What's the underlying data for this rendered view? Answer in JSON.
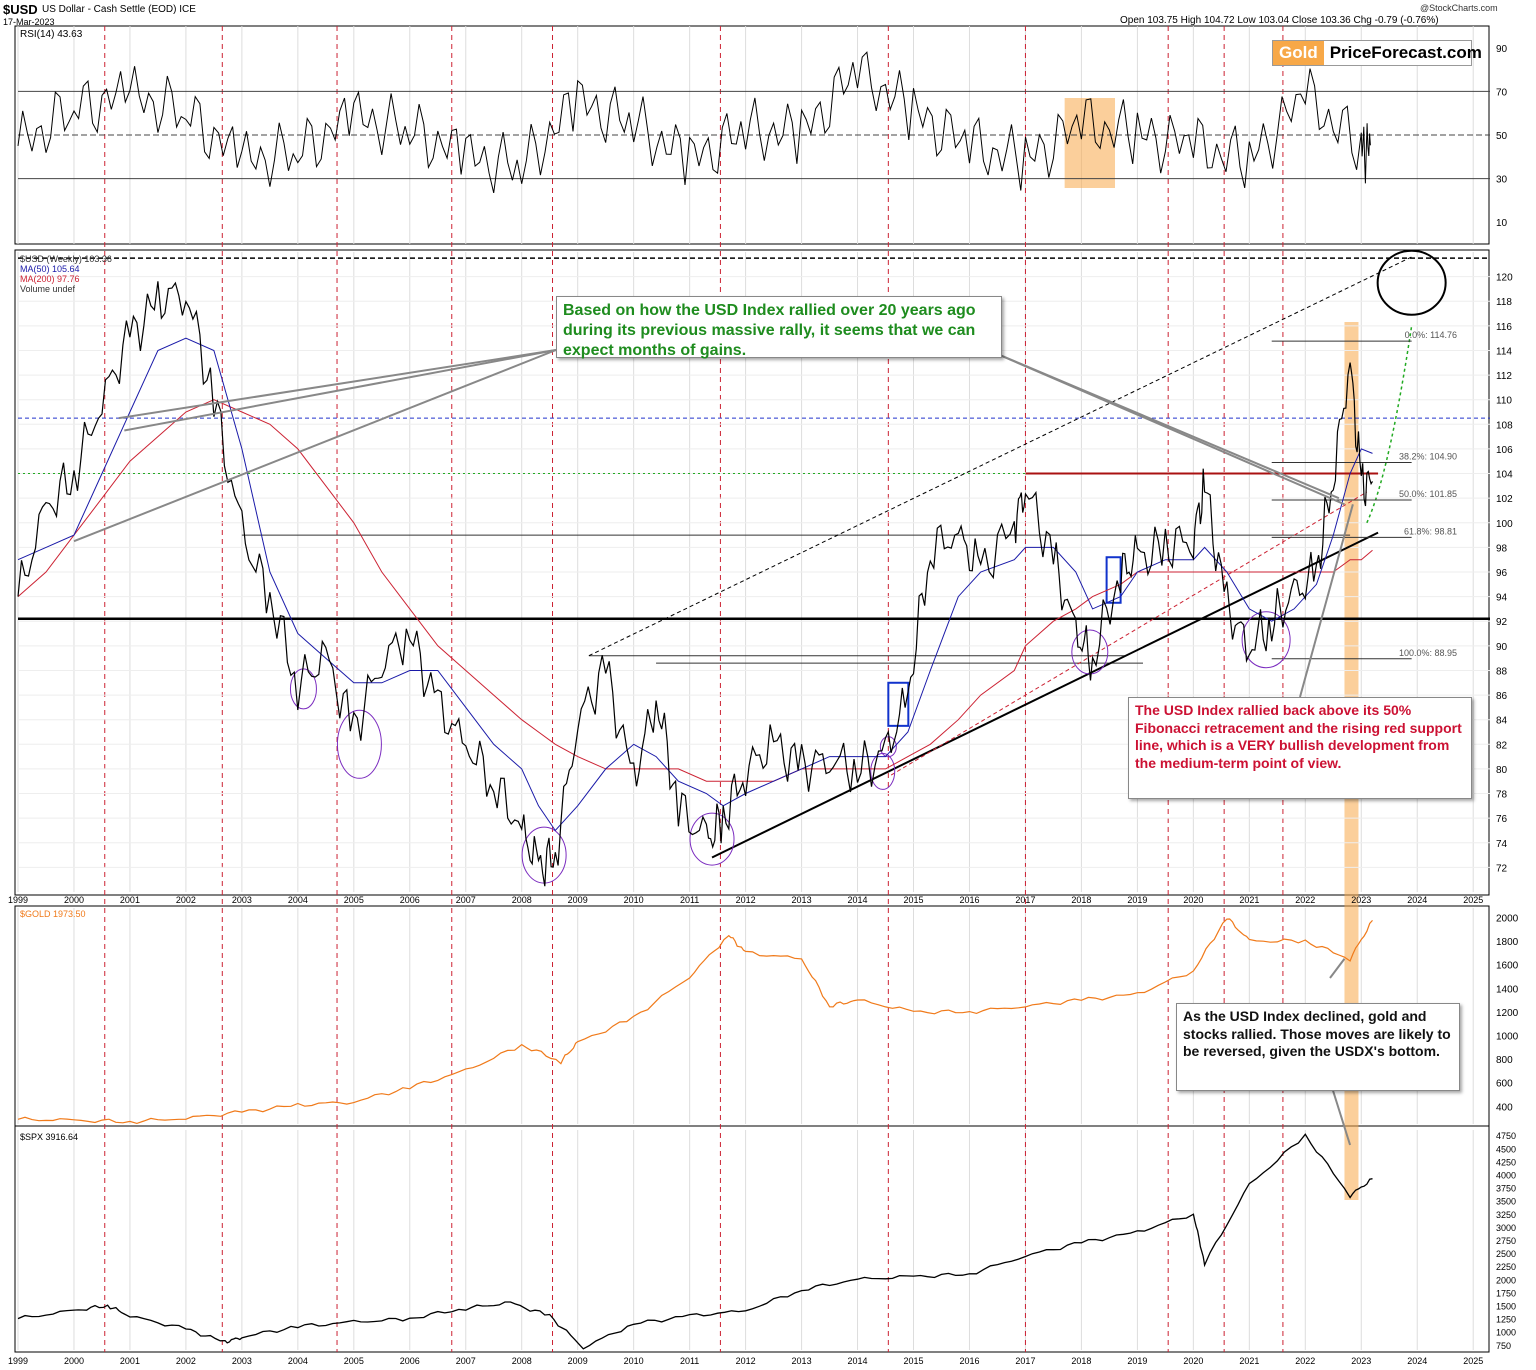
{
  "header": {
    "symbol": "$USD",
    "description": "US Dollar - Cash Settle (EOD) ICE",
    "date": "17-Mar-2023",
    "watermark": "@StockCharts.com",
    "quote": "Open 103.75  High 104.72  Low 103.04  Close 103.36  Chg -0.79 (-0.76%)"
  },
  "logo": {
    "gold": "Gold",
    "rest": "PriceForecast.com",
    "accent": "#f7a848"
  },
  "annotations": {
    "green_note": "Based on how the USD Index rallied over 20 years ago during its previous massive rally, it seems that we can expect months of gains.",
    "red_note": "The USD Index rallied back above its 50% Fibonacci retracement and the rising red support line, which is a VERY bullish development from the medium-term point of view.",
    "black_note": "As the USD Index declined, gold and stocks rallied. Those moves are likely to be reversed, given the USDX's bottom."
  },
  "colors": {
    "usd": "#000000",
    "ma50": "#1a1aa8",
    "ma200": "#cc2233",
    "gold": "#f07a1a",
    "spx": "#000000",
    "cycle": "#cc2233",
    "highlight": "#f7a848",
    "fib": "#999999",
    "green_note": "#1e8c1e",
    "red_note": "#cc1133"
  },
  "chart_data": [
    {
      "type": "line",
      "title": "RSI(14) 43.63",
      "yticks": [
        90,
        70,
        50,
        30,
        10
      ],
      "ylim": [
        0,
        100
      ],
      "x": [
        1999,
        2000,
        2001,
        2002,
        2003,
        2004,
        2005,
        2006,
        2007,
        2008,
        2009,
        2010,
        2011,
        2012,
        2013,
        2014,
        2015,
        2016,
        2017,
        2018,
        2019,
        2020,
        2021,
        2022,
        2023
      ],
      "series": [
        {
          "name": "RSI(14)",
          "values": [
            45,
            62,
            68,
            60,
            38,
            42,
            58,
            52,
            40,
            35,
            65,
            55,
            38,
            52,
            50,
            80,
            60,
            45,
            38,
            55,
            50,
            45,
            38,
            68,
            43.63
          ]
        }
      ],
      "reference_lines": [
        70,
        50,
        30
      ]
    },
    {
      "type": "line",
      "title": "$USD (Weekly) 103.36",
      "legend": [
        "$USD (Weekly) 103.36",
        "MA(50) 105.64",
        "MA(200) 97.76",
        "Volume undef"
      ],
      "ylim": [
        70,
        122
      ],
      "yticks": [
        120,
        118,
        116,
        114,
        112,
        110,
        108,
        106,
        104,
        102,
        100,
        98,
        96,
        94,
        92,
        90,
        88,
        86,
        84,
        82,
        80,
        78,
        76,
        74,
        72
      ],
      "xlabels": [
        "1999",
        "2000",
        "2001",
        "2002",
        "2003",
        "2004",
        "2005",
        "2006",
        "2007",
        "2008",
        "2009",
        "2010",
        "2011",
        "2012",
        "2013",
        "2014",
        "2015",
        "2016",
        "2017",
        "2018",
        "2019",
        "2020",
        "2021",
        "2022",
        "2023",
        "2024",
        "2025"
      ],
      "x": [
        1999.0,
        1999.5,
        2000.0,
        2000.5,
        2001.0,
        2001.5,
        2002.0,
        2002.5,
        2003.0,
        2003.5,
        2004.0,
        2004.5,
        2005.0,
        2005.5,
        2006.0,
        2006.5,
        2007.0,
        2007.5,
        2008.0,
        2008.3,
        2008.6,
        2009.0,
        2009.5,
        2010.0,
        2010.4,
        2010.8,
        2011.3,
        2011.6,
        2012.0,
        2012.5,
        2013.0,
        2013.5,
        2014.0,
        2014.5,
        2014.9,
        2015.3,
        2015.8,
        2016.2,
        2016.8,
        2017.0,
        2017.5,
        2017.9,
        2018.2,
        2018.7,
        2019.0,
        2019.5,
        2020.0,
        2020.2,
        2020.6,
        2021.0,
        2021.4,
        2021.8,
        2022.2,
        2022.5,
        2022.8,
        2023.0,
        2023.2
      ],
      "series": [
        {
          "name": "$USD (Weekly)",
          "values": [
            94,
            101,
            104,
            110,
            115,
            118,
            119,
            110,
            99,
            94,
            87,
            89,
            83,
            89,
            91,
            85,
            82,
            79,
            75,
            72,
            73,
            84,
            88,
            79,
            86,
            77,
            74,
            76,
            80,
            82,
            80,
            81,
            80,
            81,
            86,
            98,
            99,
            96,
            100,
            103,
            97,
            91,
            89,
            96,
            97,
            98,
            99,
            103,
            93,
            90,
            92,
            94,
            96,
            104,
            113,
            103,
            103.36
          ]
        },
        {
          "name": "MA(50)",
          "values": [
            97,
            98,
            99,
            104,
            109,
            114,
            115,
            114,
            106,
            96,
            91,
            89,
            87,
            87,
            88,
            88,
            85,
            82,
            80,
            77,
            75,
            77,
            80,
            82,
            81,
            79,
            78,
            77,
            78,
            79,
            80,
            81,
            81,
            81,
            83,
            88,
            94,
            96,
            97,
            98,
            98,
            96,
            93,
            94,
            96,
            97,
            97,
            98,
            96,
            93,
            92,
            93,
            95,
            99,
            104,
            106,
            105.64
          ]
        },
        {
          "name": "MA(200)",
          "values": [
            94,
            96,
            99,
            102,
            105,
            107,
            109,
            110,
            109,
            108,
            106,
            103,
            100,
            96,
            93,
            90,
            88,
            86,
            84,
            83,
            82,
            81,
            80,
            80,
            80,
            80,
            79,
            79,
            79,
            79,
            80,
            80,
            80,
            80,
            81,
            82,
            84,
            86,
            88,
            90,
            92,
            93,
            94,
            95,
            96,
            96,
            96,
            96,
            96,
            96,
            96,
            96,
            96,
            96,
            97,
            97,
            97.76
          ]
        }
      ],
      "fibonacci": [
        {
          "label": "0.0%: 114.76",
          "value": 114.76
        },
        {
          "label": "38.2%: 104.90",
          "value": 104.9
        },
        {
          "label": "50.0%: 101.85",
          "value": 101.85
        },
        {
          "label": "61.8%: 98.81",
          "value": 98.81
        },
        {
          "label": "100.0%: 88.95",
          "value": 88.95
        }
      ]
    },
    {
      "type": "line",
      "title": "$GOLD 1973.50",
      "yticks": [
        2000,
        1800,
        1600,
        1400,
        1200,
        1000,
        800,
        600,
        400
      ],
      "ylim": [
        250,
        2080
      ],
      "x": [
        1999,
        2000,
        2001,
        2002,
        2003,
        2004,
        2005,
        2006,
        2007,
        2008,
        2008.7,
        2009,
        2010,
        2011,
        2011.7,
        2012,
        2013,
        2013.5,
        2014,
        2015,
        2016,
        2017,
        2018,
        2019,
        2020,
        2020.6,
        2021,
        2022,
        2022.8,
        2023.2
      ],
      "series": [
        {
          "name": "$GOLD",
          "values": [
            290,
            280,
            270,
            300,
            350,
            410,
            440,
            560,
            700,
            920,
            780,
            940,
            1150,
            1500,
            1850,
            1700,
            1650,
            1250,
            1300,
            1200,
            1200,
            1250,
            1300,
            1350,
            1550,
            2000,
            1800,
            1800,
            1650,
            1973.5
          ]
        }
      ]
    },
    {
      "type": "line",
      "title": "$SPX 3916.64",
      "yticks": [
        4750,
        4500,
        4250,
        4000,
        3750,
        3500,
        3250,
        3000,
        2750,
        2500,
        2250,
        2000,
        1750,
        1500,
        1250,
        1000,
        750
      ],
      "ylim": [
        650,
        4850
      ],
      "x": [
        1999,
        2000,
        2000.6,
        2001,
        2002,
        2002.7,
        2003,
        2004,
        2005,
        2006,
        2007,
        2007.8,
        2008.5,
        2009.1,
        2010,
        2011,
        2012,
        2013,
        2014,
        2015,
        2016,
        2017,
        2018,
        2019,
        2020,
        2020.2,
        2021,
        2022,
        2022.8,
        2023.2
      ],
      "series": [
        {
          "name": "$SPX",
          "values": [
            1250,
            1400,
            1500,
            1300,
            1050,
            800,
            900,
            1100,
            1180,
            1250,
            1450,
            1550,
            1300,
            700,
            1150,
            1300,
            1400,
            1800,
            2000,
            2050,
            2100,
            2450,
            2700,
            2900,
            3250,
            2300,
            3800,
            4750,
            3600,
            3916.64
          ]
        }
      ]
    }
  ]
}
